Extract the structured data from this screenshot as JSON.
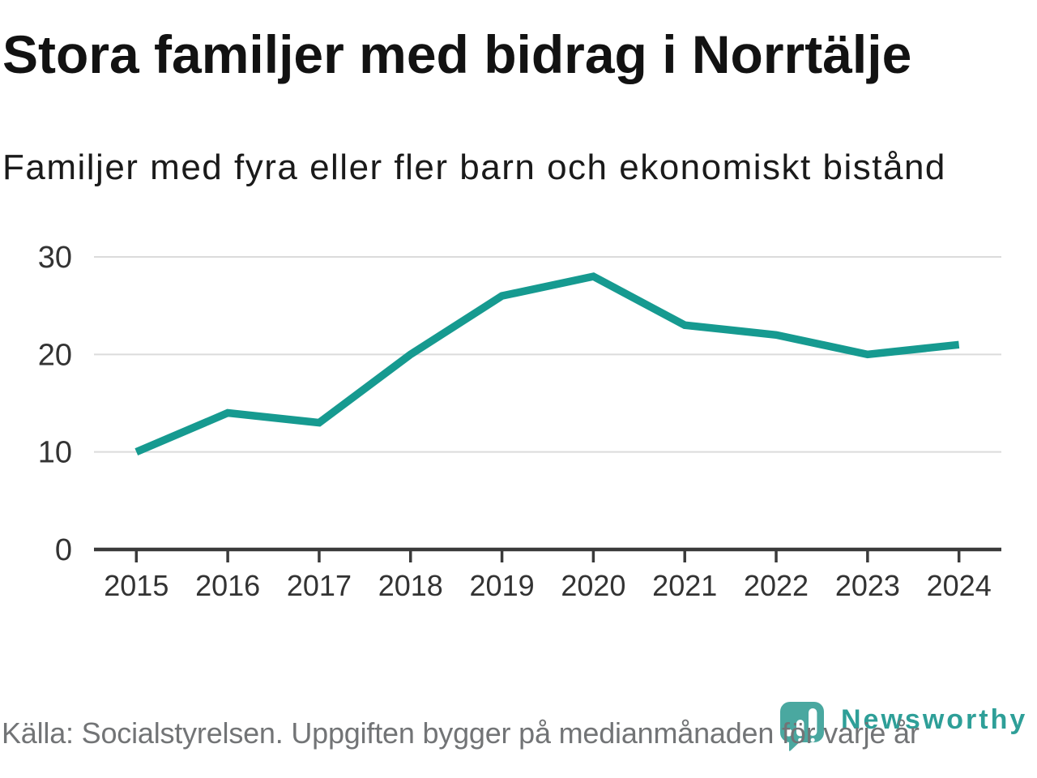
{
  "title": "Stora familjer med bidrag i Norrtälje",
  "subtitle": "Familjer med fyra eller fler barn och ekonomiskt bistånd",
  "footer": {
    "source_text": "Källa: Socialstyrelsen. Uppgiften bygger på medianmånaden för varje år"
  },
  "branding": {
    "logo_text": "Newsworthy",
    "logo_icon": "newsworthy-speech-bubble-bar-chart-icon",
    "icon_color": "#4AA8A0",
    "text_color": "#2E9F98"
  },
  "chart_data": {
    "type": "line",
    "title": "Stora familjer med bidrag i Norrtälje",
    "subtitle": "Familjer med fyra eller fler barn och ekonomiskt bistånd",
    "categories": [
      "2015",
      "2016",
      "2017",
      "2018",
      "2019",
      "2020",
      "2021",
      "2022",
      "2023",
      "2024"
    ],
    "series": [
      {
        "name": "Familjer med fyra eller fler barn och ekonomiskt bistånd",
        "values": [
          10,
          14,
          13,
          20,
          26,
          28,
          23,
          22,
          20,
          21
        ]
      }
    ],
    "xlabel": "",
    "ylabel": "",
    "ylim": [
      0,
      30
    ],
    "yticks": [
      0,
      10,
      20,
      30
    ],
    "grid": "horizontal gridlines at 10, 20, 30",
    "legend": "none",
    "line_color": "#169A90",
    "axis_color": "#3A3A3A",
    "gridline_color": "#DBDBDB",
    "label_color": "#333333"
  }
}
